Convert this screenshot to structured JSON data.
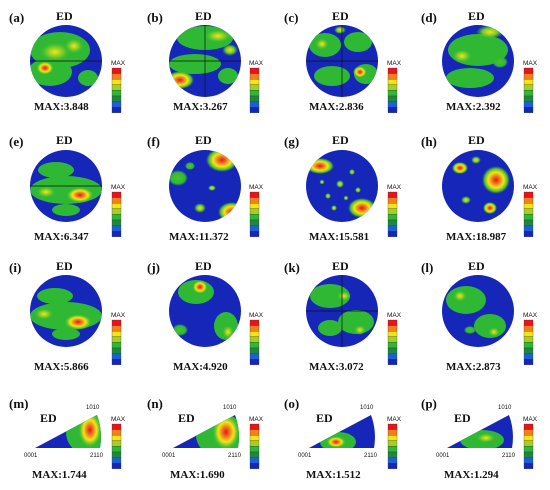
{
  "figure": {
    "ed_label": "ED",
    "max_label": "MAX",
    "panels": [
      {
        "letter": "(a)",
        "max_text": "MAX:3.848"
      },
      {
        "letter": "(b)",
        "max_text": "MAX:3.267"
      },
      {
        "letter": "(c)",
        "max_text": "MAX:2.836"
      },
      {
        "letter": "(d)",
        "max_text": "MAX:2.392"
      },
      {
        "letter": "(e)",
        "max_text": "MAX:6.347"
      },
      {
        "letter": "(f)",
        "max_text": "MAX:11.372"
      },
      {
        "letter": "(g)",
        "max_text": "MAX:15.581"
      },
      {
        "letter": "(h)",
        "max_text": "MAX:18.987"
      },
      {
        "letter": "(i)",
        "max_text": "MAX:5.866"
      },
      {
        "letter": "(j)",
        "max_text": "MAX:4.920"
      },
      {
        "letter": "(k)",
        "max_text": "MAX:3.072"
      },
      {
        "letter": "(l)",
        "max_text": "MAX:2.873"
      },
      {
        "letter": "(m)",
        "max_text": "MAX:1.744"
      },
      {
        "letter": "(n)",
        "max_text": "MAX:1.690"
      },
      {
        "letter": "(o)",
        "max_text": "MAX:1.512"
      },
      {
        "letter": "(p)",
        "max_text": "MAX:1.294"
      }
    ],
    "ipf_labels": {
      "origin": "0001",
      "top": "1010",
      "right": "2110"
    },
    "scale_colors": [
      "#e8141b",
      "#f0801e",
      "#f3e616",
      "#9fd320",
      "#2fb834",
      "#1c8a3a",
      "#1e5fd6",
      "#1526b8"
    ]
  }
}
